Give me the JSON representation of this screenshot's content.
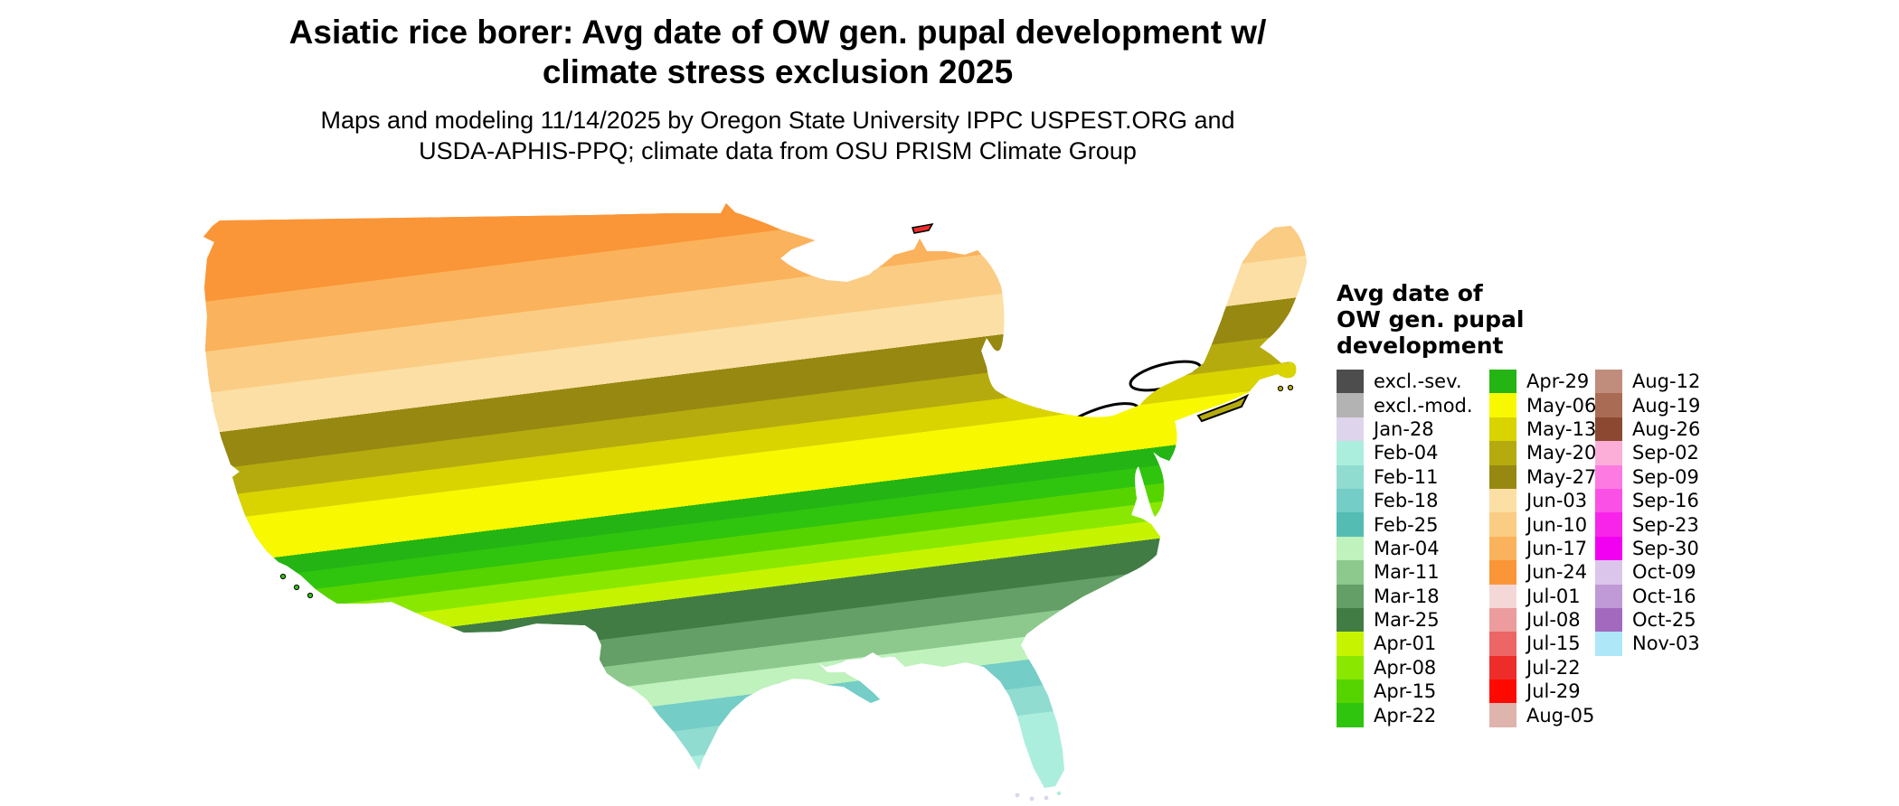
{
  "title": "Asiatic rice borer: Avg date of OW gen. pupal development w/ climate stress exclusion 2025",
  "subtitle_line1": "Maps and modeling 11/14/2025 by Oregon State University IPPC USPEST.ORG and",
  "subtitle_line2": "USDA-APHIS-PPQ; climate data from OSU PRISM Climate Group",
  "legend": {
    "title_lines": [
      "Avg date of",
      "OW gen. pupal",
      "development"
    ],
    "columns": [
      {
        "entries": [
          {
            "label": "excl.-sev.",
            "color": "#4d4d4d"
          },
          {
            "label": "excl.-mod.",
            "color": "#b3b3b3"
          },
          {
            "label": "Jan-28",
            "color": "#ded5ec"
          },
          {
            "label": "Feb-04",
            "color": "#aceedd"
          },
          {
            "label": "Feb-11",
            "color": "#90dcd0"
          },
          {
            "label": "Feb-18",
            "color": "#74cdc6"
          },
          {
            "label": "Feb-25",
            "color": "#54bcb3"
          },
          {
            "label": "Mar-04",
            "color": "#bff2bd"
          },
          {
            "label": "Mar-11",
            "color": "#8dc98d"
          },
          {
            "label": "Mar-18",
            "color": "#639f66"
          },
          {
            "label": "Mar-25",
            "color": "#417c45"
          },
          {
            "label": "Apr-01",
            "color": "#c6f400"
          },
          {
            "label": "Apr-08",
            "color": "#8ae800"
          },
          {
            "label": "Apr-15",
            "color": "#56d400"
          },
          {
            "label": "Apr-22",
            "color": "#2fc40e"
          }
        ]
      },
      {
        "entries": [
          {
            "label": "Apr-29",
            "color": "#24b414"
          },
          {
            "label": "May-06",
            "color": "#f8f800"
          },
          {
            "label": "May-13",
            "color": "#d9d300"
          },
          {
            "label": "May-20",
            "color": "#b5ab0e"
          },
          {
            "label": "May-27",
            "color": "#968811"
          },
          {
            "label": "Jun-03",
            "color": "#fbdfa4"
          },
          {
            "label": "Jun-10",
            "color": "#fbcc83"
          },
          {
            "label": "Jun-17",
            "color": "#fbb25c"
          },
          {
            "label": "Jun-24",
            "color": "#fa9638"
          },
          {
            "label": "Jul-01",
            "color": "#f4d8d8"
          },
          {
            "label": "Jul-08",
            "color": "#ec9c9c"
          },
          {
            "label": "Jul-15",
            "color": "#ec6665"
          },
          {
            "label": "Jul-22",
            "color": "#ee2d2b"
          },
          {
            "label": "Jul-29",
            "color": "#fd0900"
          },
          {
            "label": "Aug-05",
            "color": "#dfb4ad"
          }
        ]
      },
      {
        "entries": [
          {
            "label": "Aug-12",
            "color": "#c08c7c"
          },
          {
            "label": "Aug-19",
            "color": "#aa6b54"
          },
          {
            "label": "Aug-26",
            "color": "#8c4830"
          },
          {
            "label": "Sep-02",
            "color": "#fcaed9"
          },
          {
            "label": "Sep-09",
            "color": "#fc7ae2"
          },
          {
            "label": "Sep-16",
            "color": "#fa50e6"
          },
          {
            "label": "Sep-23",
            "color": "#f824ea"
          },
          {
            "label": "Sep-30",
            "color": "#f200f2"
          },
          {
            "label": "Oct-09",
            "color": "#dcc5eb"
          },
          {
            "label": "Oct-16",
            "color": "#c09ad6"
          },
          {
            "label": "Oct-25",
            "color": "#a369bf"
          },
          {
            "label": "Nov-03",
            "color": "#aee7f8"
          }
        ]
      }
    ]
  },
  "map": {
    "north_to_south_bands": [
      {
        "label": "Jun-24",
        "to": 0.06
      },
      {
        "label": "Jun-17",
        "to": 0.142
      },
      {
        "label": "Jun-10",
        "to": 0.21
      },
      {
        "label": "Jun-03",
        "to": 0.277
      },
      {
        "label": "May-27",
        "to": 0.337
      },
      {
        "label": "May-20",
        "to": 0.382
      },
      {
        "label": "May-13",
        "to": 0.421
      },
      {
        "label": "May-06",
        "to": 0.494
      },
      {
        "label": "Apr-29",
        "to": 0.524
      },
      {
        "label": "Apr-22",
        "to": 0.554
      },
      {
        "label": "Apr-15",
        "to": 0.584
      },
      {
        "label": "Apr-08",
        "to": 0.614
      },
      {
        "label": "Apr-01",
        "to": 0.644
      },
      {
        "label": "Mar-25",
        "to": 0.696
      },
      {
        "label": "Mar-18",
        "to": 0.741
      },
      {
        "label": "Mar-11",
        "to": 0.778
      },
      {
        "label": "Mar-04",
        "to": 0.816
      },
      {
        "label": "Feb-18",
        "to": 0.861
      },
      {
        "label": "Feb-11",
        "to": 0.906
      },
      {
        "label": "Feb-04",
        "to": 1.0
      }
    ]
  }
}
